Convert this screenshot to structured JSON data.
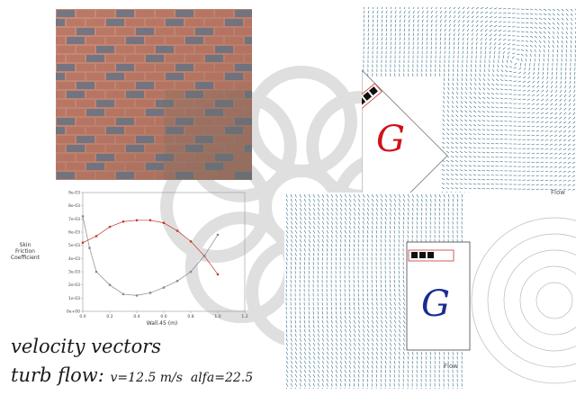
{
  "colors": {
    "brick": "#b06a58",
    "mortar": "#c9a897",
    "glaze": "#5b6f86",
    "g_red": "#d0121a",
    "g_blue": "#1a2d8f",
    "series_red": "#c0392b",
    "series_gray": "#888888",
    "vectors": "#2f6c86"
  },
  "icons": [
    "g-glyph",
    "building-block"
  ],
  "glyphs": {
    "g_top": "G",
    "g_bottom": "G"
  },
  "flow_labels": {
    "top": "Flow",
    "bottom": "Flow"
  },
  "caption": {
    "line1": "velocity vectors",
    "line2_prefix": "turb flow:",
    "line2_params": "v=12.5 m/s  alfa=22.5"
  },
  "chart_data": {
    "type": "line",
    "ylabel": "Skin\nFriction\nCoefficient",
    "xlabel": "Wall.45 (m)",
    "xlim": [
      0.0,
      1.2
    ],
    "ylim": [
      0.0,
      0.009
    ],
    "x_ticks": [
      "0.0",
      "0.2",
      "0.4",
      "0.6",
      "0.8",
      "1.0",
      "1.2"
    ],
    "y_ticks": [
      "0e+00",
      "1e-03",
      "2e-03",
      "3e-03",
      "4e-03",
      "5e-03",
      "6e-03",
      "7e-03",
      "8e-03",
      "9e-03"
    ],
    "grid": false,
    "series": [
      {
        "color": "#c0392b",
        "x": [
          0.0,
          0.1,
          0.2,
          0.3,
          0.4,
          0.5,
          0.6,
          0.7,
          0.8,
          0.9,
          1.0
        ],
        "y": [
          0.0052,
          0.0057,
          0.0064,
          0.0068,
          0.0069,
          0.0069,
          0.0067,
          0.0061,
          0.0053,
          0.0042,
          0.0028
        ]
      },
      {
        "color": "#888888",
        "x": [
          0.0,
          0.05,
          0.1,
          0.2,
          0.3,
          0.4,
          0.5,
          0.6,
          0.7,
          0.8,
          0.9,
          1.0
        ],
        "y": [
          0.0072,
          0.0048,
          0.003,
          0.002,
          0.0013,
          0.0012,
          0.0014,
          0.0018,
          0.0023,
          0.003,
          0.0042,
          0.0058
        ]
      }
    ]
  }
}
